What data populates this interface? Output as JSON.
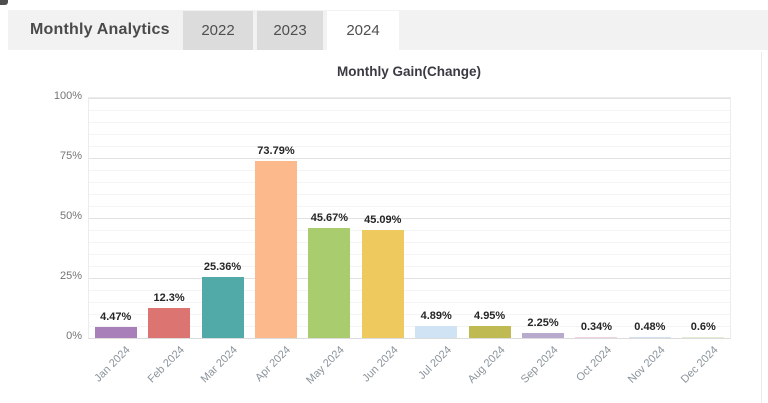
{
  "header": {
    "title": "Monthly Analytics",
    "tabs": [
      {
        "label": "2022",
        "active": false
      },
      {
        "label": "2023",
        "active": false
      },
      {
        "label": "2024",
        "active": true
      }
    ]
  },
  "chart_data": {
    "type": "bar",
    "title": "Monthly Gain(Change)",
    "categories": [
      "Jan 2024",
      "Feb 2024",
      "Mar 2024",
      "Apr 2024",
      "May 2024",
      "Jun 2024",
      "Jul 2024",
      "Aug 2024",
      "Sep 2024",
      "Oct 2024",
      "Nov 2024",
      "Dec 2024"
    ],
    "values": [
      4.47,
      12.3,
      25.36,
      73.79,
      45.67,
      45.09,
      4.89,
      4.95,
      2.25,
      0.34,
      0.48,
      0.6
    ],
    "value_labels": [
      "4.47%",
      "12.3%",
      "25.36%",
      "73.79%",
      "45.67%",
      "45.09%",
      "4.89%",
      "4.95%",
      "2.25%",
      "0.34%",
      "0.48%",
      "0.6%"
    ],
    "bar_colors": [
      "#a87fb8",
      "#dc7572",
      "#52aaa8",
      "#fbb98c",
      "#a9cd6e",
      "#edc95e",
      "#cfe3f4",
      "#c0ba52",
      "#b7aacd",
      "#efd3e0",
      "#d3e0ef",
      "#e0efd3"
    ],
    "y_ticks": [
      "0%",
      "25%",
      "50%",
      "75%",
      "100%"
    ],
    "ylim": [
      0,
      100
    ],
    "grid": {
      "major_step": 25,
      "minor_step": 5,
      "visible": true
    },
    "legend": "none",
    "xlabel": "",
    "ylabel": ""
  },
  "colors": {
    "header_bg": "#f2f2f2",
    "tab_inactive_bg": "#dcdcdc",
    "tab_active_bg": "#ffffff",
    "tab_text": "#4f4f4f",
    "title_text": "#4a4a4a",
    "value_label_text": "#262626",
    "axis_label_text": "#757575",
    "x_label_text": "#8b949c",
    "grid_major": "#e2e2e2",
    "grid_minor": "#f4f4f4",
    "plot_border": "#ececec"
  }
}
